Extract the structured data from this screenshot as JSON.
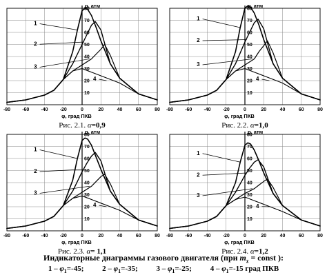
{
  "figures": [
    {
      "caption_prefix": "Рис. 2.1.",
      "alpha_symbol": "α",
      "alpha_value": "=0,9"
    },
    {
      "caption_prefix": "Рис. 2.2.",
      "alpha_symbol": "α",
      "alpha_value": "=1,0"
    },
    {
      "caption_prefix": "Рис. 2.3.",
      "alpha_symbol": "α",
      "alpha_value": "= 1,1"
    },
    {
      "caption_prefix": "Рис. 2.4.",
      "alpha_symbol": "α",
      "alpha_value": "=1,2"
    }
  ],
  "footer": {
    "title_main": "Индикаторные диаграммы газового двигателя (при",
    "title_var": "m",
    "title_sub": "z",
    "title_end": "= const ):",
    "legend": [
      {
        "num": "1",
        "sym": "φ",
        "sub": "1",
        "value": "=-45;"
      },
      {
        "num": "2",
        "sym": "φ",
        "sub": "1",
        "value": "=-35;"
      },
      {
        "num": "3",
        "sym": "φ",
        "sub": "1",
        "value": "=-25;"
      },
      {
        "num": "4",
        "sym": "φ",
        "sub": "1",
        "value": "=-15 град ПКВ"
      }
    ]
  },
  "chart_data": [
    {
      "type": "line",
      "xlabel": "φ, град ПКВ",
      "ylabel": "p, атм",
      "xlim": [
        -80,
        80
      ],
      "ylim": [
        0,
        80
      ],
      "xticks": [
        -80,
        -60,
        -40,
        -20,
        0,
        20,
        40,
        60,
        80
      ],
      "yticks": [
        10,
        20,
        30,
        40,
        50,
        60,
        70,
        80
      ],
      "grid": true,
      "series": [
        {
          "name": "1",
          "x": [
            -80,
            -60,
            -40,
            -30,
            -20,
            -10,
            -5,
            0,
            3,
            6,
            10,
            15,
            20,
            30,
            40,
            60,
            80
          ],
          "y": [
            2,
            4,
            8,
            12,
            21,
            44,
            62,
            78,
            80,
            79,
            74,
            64,
            53,
            34,
            22,
            9,
            4
          ]
        },
        {
          "name": "2",
          "x": [
            -80,
            -60,
            -40,
            -30,
            -20,
            -10,
            -5,
            0,
            5,
            10,
            14,
            20,
            30,
            40,
            60,
            80
          ],
          "y": [
            2,
            4,
            8,
            12,
            21,
            34,
            42,
            50,
            58,
            66,
            69,
            62,
            34,
            22,
            9,
            4
          ]
        },
        {
          "name": "3",
          "x": [
            -80,
            -60,
            -40,
            -30,
            -20,
            -10,
            0,
            10,
            15,
            20,
            24,
            30,
            40,
            60,
            80
          ],
          "y": [
            2,
            4,
            8,
            12,
            21,
            28,
            33,
            38,
            42,
            46,
            50,
            41,
            22,
            9,
            4
          ]
        },
        {
          "name": "4",
          "x": [
            -80,
            -60,
            -40,
            -30,
            -20,
            -10,
            0,
            10,
            20,
            30,
            40,
            60,
            80
          ],
          "y": [
            2,
            4,
            8,
            12,
            21,
            28,
            30,
            27,
            24,
            21,
            18,
            9,
            4
          ]
        }
      ],
      "labels": [
        {
          "text": "1",
          "x": -48,
          "y": 66
        },
        {
          "text": "2",
          "x": -48,
          "y": 49
        },
        {
          "text": "3",
          "x": -48,
          "y": 30
        },
        {
          "text": "4",
          "x": 15,
          "y": 20
        }
      ]
    },
    {
      "type": "line",
      "xlabel": "φ, град ПКВ",
      "ylabel": "p, атм",
      "xlim": [
        -80,
        80
      ],
      "ylim": [
        0,
        80
      ],
      "xticks": [
        -80,
        -60,
        -40,
        -20,
        0,
        20,
        40,
        60,
        80
      ],
      "yticks": [
        10,
        20,
        30,
        40,
        50,
        60,
        70,
        80
      ],
      "grid": true,
      "series": [
        {
          "name": "1",
          "x": [
            -80,
            -60,
            -40,
            -30,
            -20,
            -10,
            -5,
            0,
            3,
            6,
            10,
            15,
            20,
            30,
            40,
            60,
            80
          ],
          "y": [
            2,
            4,
            8,
            12,
            21,
            44,
            64,
            80,
            82,
            81,
            76,
            66,
            54,
            34,
            22,
            9,
            4
          ]
        },
        {
          "name": "2",
          "x": [
            -80,
            -60,
            -40,
            -30,
            -20,
            -10,
            -5,
            0,
            5,
            10,
            14,
            20,
            30,
            40,
            60,
            80
          ],
          "y": [
            2,
            4,
            8,
            12,
            21,
            34,
            43,
            52,
            60,
            68,
            71,
            63,
            34,
            22,
            9,
            4
          ]
        },
        {
          "name": "3",
          "x": [
            -80,
            -60,
            -40,
            -30,
            -20,
            -10,
            0,
            10,
            15,
            20,
            24,
            30,
            40,
            60,
            80
          ],
          "y": [
            2,
            4,
            8,
            12,
            21,
            28,
            33,
            38,
            44,
            49,
            53,
            43,
            22,
            9,
            4
          ]
        },
        {
          "name": "4",
          "x": [
            -80,
            -60,
            -40,
            -30,
            -20,
            -10,
            0,
            10,
            20,
            30,
            40,
            60,
            80
          ],
          "y": [
            2,
            4,
            8,
            12,
            21,
            28,
            30,
            27,
            24,
            21,
            18,
            9,
            4
          ]
        }
      ],
      "labels": [
        {
          "text": "1",
          "x": -48,
          "y": 70
        },
        {
          "text": "2",
          "x": -48,
          "y": 52
        },
        {
          "text": "3",
          "x": -48,
          "y": 32
        },
        {
          "text": "4",
          "x": 15,
          "y": 20
        }
      ]
    },
    {
      "type": "line",
      "xlabel": "φ, град ПКВ",
      "ylabel": "p, атм",
      "xlim": [
        -80,
        80
      ],
      "ylim": [
        0,
        80
      ],
      "xticks": [
        -80,
        -60,
        -40,
        -20,
        0,
        20,
        40,
        60,
        80
      ],
      "yticks": [
        10,
        20,
        30,
        40,
        50,
        60,
        70,
        80
      ],
      "grid": true,
      "series": [
        {
          "name": "1",
          "x": [
            -80,
            -60,
            -40,
            -30,
            -20,
            -10,
            -5,
            0,
            3,
            6,
            10,
            15,
            20,
            30,
            40,
            60,
            80
          ],
          "y": [
            2,
            4,
            8,
            12,
            21,
            42,
            60,
            75,
            77,
            76,
            71,
            61,
            51,
            33,
            22,
            9,
            4
          ]
        },
        {
          "name": "2",
          "x": [
            -80,
            -60,
            -40,
            -30,
            -20,
            -10,
            -5,
            0,
            5,
            10,
            14,
            20,
            30,
            40,
            60,
            80
          ],
          "y": [
            2,
            4,
            8,
            12,
            21,
            33,
            41,
            49,
            56,
            62,
            65,
            58,
            33,
            22,
            9,
            4
          ]
        },
        {
          "name": "3",
          "x": [
            -80,
            -60,
            -40,
            -30,
            -20,
            -10,
            0,
            10,
            15,
            20,
            24,
            30,
            40,
            60,
            80
          ],
          "y": [
            2,
            4,
            8,
            12,
            21,
            27,
            32,
            37,
            41,
            45,
            47,
            39,
            22,
            9,
            4
          ]
        },
        {
          "name": "4",
          "x": [
            -80,
            -60,
            -40,
            -30,
            -20,
            -10,
            0,
            10,
            20,
            30,
            40,
            60,
            80
          ],
          "y": [
            2,
            4,
            8,
            12,
            21,
            27,
            29,
            26,
            23,
            20,
            17,
            9,
            4
          ]
        }
      ],
      "labels": [
        {
          "text": "1",
          "x": -48,
          "y": 66
        },
        {
          "text": "2",
          "x": -48,
          "y": 48
        },
        {
          "text": "3",
          "x": -48,
          "y": 30
        },
        {
          "text": "4",
          "x": 15,
          "y": 20
        }
      ]
    },
    {
      "type": "line",
      "xlabel": "φ, град ПКВ",
      "ylabel": "p, атм",
      "xlim": [
        -80,
        80
      ],
      "ylim": [
        0,
        80
      ],
      "xticks": [
        -80,
        -60,
        -40,
        -20,
        0,
        20,
        40,
        60,
        80
      ],
      "yticks": [
        10,
        20,
        30,
        40,
        50,
        60,
        70,
        80
      ],
      "grid": true,
      "series": [
        {
          "name": "1",
          "x": [
            -80,
            -60,
            -40,
            -30,
            -20,
            -10,
            -5,
            0,
            3,
            6,
            10,
            15,
            20,
            30,
            40,
            60,
            80
          ],
          "y": [
            2,
            4,
            8,
            12,
            21,
            40,
            57,
            71,
            73,
            72,
            67,
            58,
            48,
            31,
            21,
            9,
            4
          ]
        },
        {
          "name": "2",
          "x": [
            -80,
            -60,
            -40,
            -30,
            -20,
            -10,
            -5,
            0,
            5,
            10,
            14,
            20,
            30,
            40,
            60,
            80
          ],
          "y": [
            2,
            4,
            8,
            12,
            21,
            32,
            39,
            46,
            52,
            57,
            59,
            53,
            31,
            21,
            9,
            4
          ]
        },
        {
          "name": "3",
          "x": [
            -80,
            -60,
            -40,
            -30,
            -20,
            -10,
            0,
            10,
            15,
            20,
            24,
            30,
            40,
            60,
            80
          ],
          "y": [
            2,
            4,
            8,
            12,
            21,
            26,
            31,
            35,
            38,
            41,
            43,
            36,
            21,
            9,
            4
          ]
        },
        {
          "name": "4",
          "x": [
            -80,
            -60,
            -40,
            -30,
            -20,
            -10,
            0,
            10,
            20,
            30,
            40,
            60,
            80
          ],
          "y": [
            2,
            4,
            8,
            12,
            21,
            26,
            28,
            25,
            22,
            19,
            16,
            9,
            4
          ]
        }
      ],
      "labels": [
        {
          "text": "1",
          "x": -48,
          "y": 63
        },
        {
          "text": "2",
          "x": -48,
          "y": 45
        },
        {
          "text": "3",
          "x": -48,
          "y": 28
        },
        {
          "text": "4",
          "x": 15,
          "y": 19
        }
      ]
    }
  ]
}
